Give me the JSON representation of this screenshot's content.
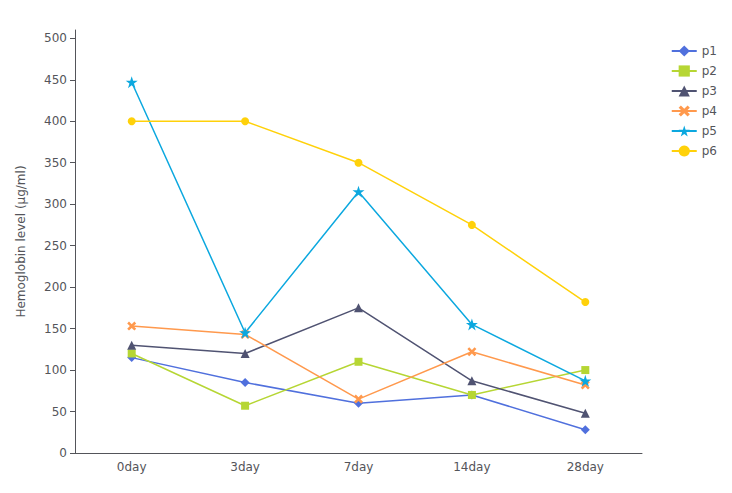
{
  "chart_data": {
    "type": "line",
    "categories": [
      "0day",
      "3day",
      "7day",
      "14day",
      "28day"
    ],
    "series": [
      {
        "name": "p1",
        "values": [
          115,
          85,
          60,
          70,
          28
        ],
        "marker": "diamond"
      },
      {
        "name": "p2",
        "values": [
          120,
          57,
          110,
          70,
          100
        ],
        "marker": "square"
      },
      {
        "name": "p3",
        "values": [
          130,
          120,
          175,
          87,
          48
        ],
        "marker": "triangle"
      },
      {
        "name": "p4",
        "values": [
          153,
          143,
          65,
          122,
          82
        ],
        "marker": "x"
      },
      {
        "name": "p5",
        "values": [
          447,
          145,
          315,
          155,
          87
        ],
        "marker": "star"
      },
      {
        "name": "p6",
        "values": [
          400,
          400,
          350,
          275,
          182
        ],
        "marker": "circle"
      }
    ],
    "ylabel": "Hemoglobin level (μg/ml)",
    "ylim": [
      0,
      510
    ],
    "yticks": [
      0,
      50,
      100,
      150,
      200,
      250,
      300,
      350,
      400,
      450,
      500
    ],
    "grid": false,
    "legend": "right"
  }
}
